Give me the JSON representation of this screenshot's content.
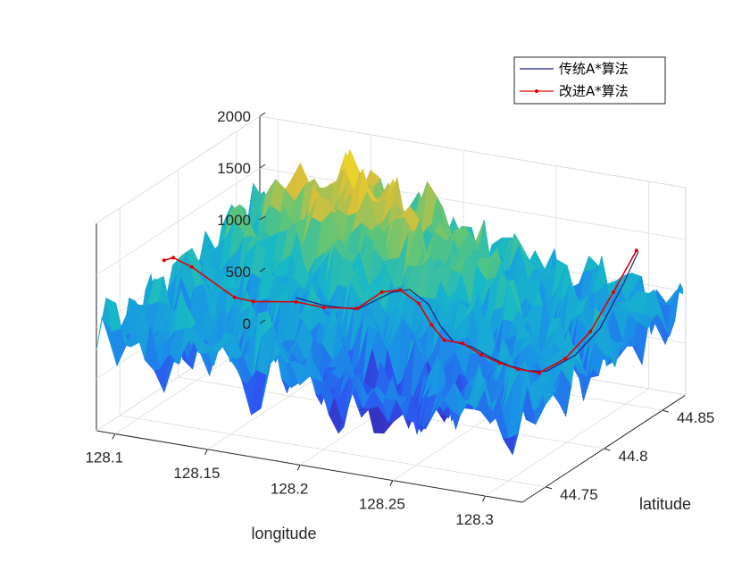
{
  "chart_data": {
    "type": "surface3d",
    "xlabel": "longitude",
    "ylabel": "latitude",
    "zlabel": "",
    "x_ticks": [
      "128.1",
      "128.15",
      "128.2",
      "128.25",
      "128.3"
    ],
    "y_ticks": [
      "44.75",
      "44.8",
      "44.85"
    ],
    "z_ticks": [
      "0",
      "500",
      "1000",
      "1500",
      "2000"
    ],
    "xlim": [
      128.09,
      128.32
    ],
    "ylim": [
      44.73,
      44.87
    ],
    "zlim": [
      0,
      2000
    ],
    "grid": true,
    "colormap": "parula",
    "legend": {
      "placement": "top-right",
      "entries": [
        {
          "label": "传统A*算法",
          "color": "#1a237e",
          "marker": "none"
        },
        {
          "label": "改进A*算法",
          "color": "#e00000",
          "marker": "dot"
        }
      ]
    },
    "series": [
      {
        "name": "传统A*算法",
        "points": [
          [
            128.16,
            44.79,
            1050
          ],
          [
            128.175,
            44.79,
            1020
          ],
          [
            128.19,
            44.795,
            990
          ],
          [
            128.205,
            44.8,
            1160
          ],
          [
            128.215,
            44.8,
            1220
          ],
          [
            128.225,
            44.8,
            1110
          ],
          [
            128.235,
            44.795,
            960
          ],
          [
            128.245,
            44.79,
            880
          ],
          [
            128.255,
            44.79,
            860
          ],
          [
            128.265,
            44.79,
            790
          ],
          [
            128.275,
            44.79,
            740
          ],
          [
            128.285,
            44.79,
            720
          ],
          [
            128.292,
            44.795,
            700
          ],
          [
            128.298,
            44.81,
            760
          ],
          [
            128.302,
            44.825,
            920
          ],
          [
            128.305,
            44.84,
            1240
          ],
          [
            128.307,
            44.85,
            1490
          ]
        ]
      },
      {
        "name": "改进A*算法",
        "points": [
          [
            128.095,
            44.78,
            1290
          ],
          [
            128.1,
            44.78,
            1330
          ],
          [
            128.11,
            44.78,
            1270
          ],
          [
            128.13,
            44.785,
            1000
          ],
          [
            128.14,
            44.785,
            990
          ],
          [
            128.16,
            44.79,
            1010
          ],
          [
            128.175,
            44.79,
            1000
          ],
          [
            128.19,
            44.795,
            1000
          ],
          [
            128.2,
            44.8,
            1150
          ],
          [
            128.21,
            44.8,
            1200
          ],
          [
            128.22,
            44.8,
            1100
          ],
          [
            128.23,
            44.795,
            960
          ],
          [
            128.24,
            44.79,
            880
          ],
          [
            128.25,
            44.79,
            880
          ],
          [
            128.26,
            44.79,
            800
          ],
          [
            128.27,
            44.79,
            750
          ],
          [
            128.28,
            44.79,
            720
          ],
          [
            128.29,
            44.792,
            700
          ],
          [
            128.296,
            44.805,
            760
          ],
          [
            128.3,
            44.82,
            920
          ],
          [
            128.303,
            44.835,
            1200
          ],
          [
            128.306,
            44.85,
            1500
          ]
        ]
      }
    ]
  }
}
